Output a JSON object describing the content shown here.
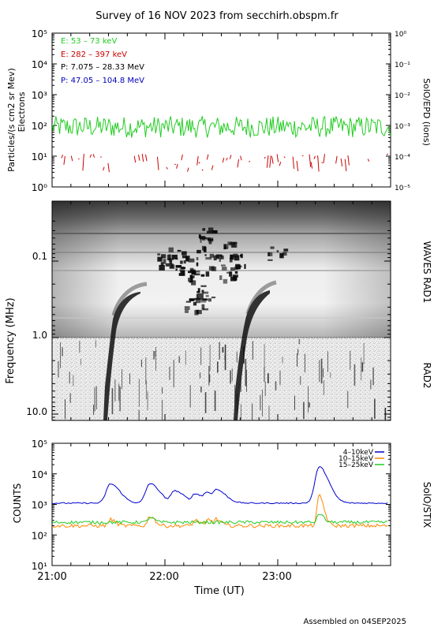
{
  "title": "Survey of 16 NOV 2023 from secchirh.obspm.fr",
  "footer": "Assembled on 04SEP2025",
  "x_axis": {
    "label": "Time (UT)",
    "ticks": [
      "21:00",
      "22:00",
      "23:00"
    ]
  },
  "chart_data": [
    {
      "type": "line",
      "name": "SolO/EPD particles",
      "ylabel": "Particles/(s cm2 sr Mev)",
      "ylabel2": "Electrons",
      "right_label": "SolO/EPD (ions)",
      "y_scale": "log",
      "ylim": [
        1,
        100000
      ],
      "y2lim": [
        1e-05,
        1
      ],
      "y_ticks": [
        "10⁰",
        "10¹",
        "10²",
        "10³",
        "10⁴",
        "10⁵"
      ],
      "y2_ticks": [
        "10⁻⁵",
        "10⁻⁴",
        "10⁻³",
        "10⁻²",
        "10⁻¹",
        "10⁰"
      ],
      "series": [
        {
          "name": "E: 53 – 73 keV",
          "color": "#22cc22",
          "typical_value": 80,
          "range": [
            40,
            200
          ]
        },
        {
          "name": "E: 282 – 397 keV",
          "color": "#cc0000",
          "typical_value": 6,
          "range": [
            3,
            12
          ]
        },
        {
          "name": "P: 7.075 – 28.33 MeV",
          "color": "#000000"
        },
        {
          "name": "P: 47.05 – 104.8 MeV",
          "color": "#0000bb"
        }
      ]
    },
    {
      "type": "heatmap",
      "name": "Radio dynamic spectrum",
      "ylabel": "Frequency (MHz)",
      "right_label_top": "WAVES RAD1",
      "right_label_bottom": "RAD2",
      "y_scale": "log",
      "y_reversed": true,
      "y_ticks": [
        "0.1",
        "1.0",
        "10.0"
      ],
      "type_iii_bursts_start": [
        "21:30",
        "22:37"
      ]
    },
    {
      "type": "line",
      "name": "SolO/STIX counts",
      "ylabel": "COUNTS",
      "right_label": "SolO/STIX",
      "y_scale": "log",
      "ylim": [
        10,
        100000
      ],
      "y_ticks": [
        "10¹",
        "10²",
        "10³",
        "10⁴",
        "10⁵"
      ],
      "series": [
        {
          "name": "4–10keV",
          "color": "#0000cc",
          "baseline": 1100,
          "peaks": [
            {
              "t": "21:31",
              "v": 4700
            },
            {
              "t": "21:52",
              "v": 4800
            },
            {
              "t": "22:05",
              "v": 2800
            },
            {
              "t": "22:16",
              "v": 2200
            },
            {
              "t": "22:22",
              "v": 2500
            },
            {
              "t": "22:27",
              "v": 3100
            },
            {
              "t": "23:22",
              "v": 17000
            }
          ]
        },
        {
          "name": "10–15keV",
          "color": "#ff8800",
          "baseline": 200,
          "peaks": [
            {
              "t": "21:31",
              "v": 320
            },
            {
              "t": "21:52",
              "v": 420
            },
            {
              "t": "22:16",
              "v": 300
            },
            {
              "t": "22:23",
              "v": 320
            },
            {
              "t": "22:27",
              "v": 330
            },
            {
              "t": "23:22",
              "v": 1900
            }
          ]
        },
        {
          "name": "15–25keV",
          "color": "#22cc22",
          "baseline": 260,
          "peaks": [
            {
              "t": "21:52",
              "v": 380
            },
            {
              "t": "23:22",
              "v": 500
            }
          ]
        }
      ]
    }
  ]
}
